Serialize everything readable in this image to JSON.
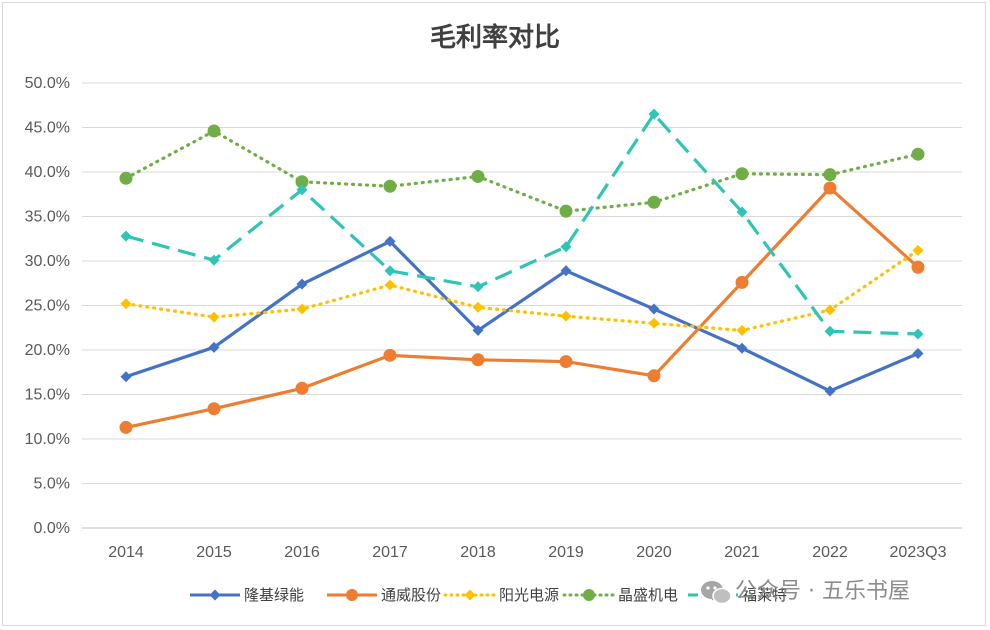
{
  "chart_data": {
    "type": "line",
    "title": "毛利率对比",
    "categories": [
      "2014",
      "2015",
      "2016",
      "2017",
      "2018",
      "2019",
      "2020",
      "2021",
      "2022",
      "2023Q3"
    ],
    "y_ticks": [
      "0.0%",
      "5.0%",
      "10.0%",
      "15.0%",
      "20.0%",
      "25.0%",
      "30.0%",
      "35.0%",
      "40.0%",
      "45.0%",
      "50.0%"
    ],
    "ylim": [
      0,
      50
    ],
    "grid": true,
    "legend_position": "bottom",
    "series": [
      {
        "name": "隆基绿能",
        "color": "#4472c4",
        "marker": "diamond",
        "dash": "solid",
        "values": [
          17.0,
          20.3,
          27.4,
          32.2,
          22.2,
          28.9,
          24.6,
          20.2,
          15.4,
          19.6
        ]
      },
      {
        "name": "通威股份",
        "color": "#ed7d31",
        "marker": "circle",
        "dash": "solid",
        "values": [
          11.3,
          13.4,
          15.7,
          19.4,
          18.9,
          18.7,
          17.1,
          27.6,
          38.2,
          29.3
        ]
      },
      {
        "name": "阳光电源",
        "color": "#ffc000",
        "marker": "diamond",
        "dash": "dotted",
        "values": [
          25.2,
          23.7,
          24.6,
          27.3,
          24.8,
          23.8,
          23.0,
          22.2,
          24.5,
          31.2
        ]
      },
      {
        "name": "晶盛机电",
        "color": "#70ad47",
        "marker": "circle",
        "dash": "dotted",
        "values": [
          39.3,
          44.6,
          38.9,
          38.4,
          39.5,
          35.6,
          36.6,
          39.8,
          39.7,
          42.0
        ]
      },
      {
        "name": "福莱特",
        "color": "#2ec4b6",
        "marker": "diamond",
        "dash": "dashed",
        "values": [
          32.8,
          30.1,
          38.0,
          28.9,
          27.1,
          31.6,
          46.5,
          35.5,
          22.1,
          21.8
        ]
      }
    ]
  },
  "watermark": {
    "text": "公众号 · 五乐书屋",
    "icon": "wechat-icon"
  }
}
